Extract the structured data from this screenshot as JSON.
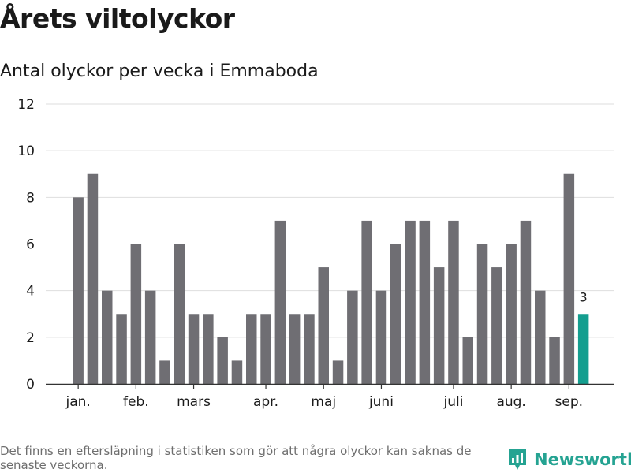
{
  "title": "Årets viltolyckor",
  "subtitle": "Antal olyckor per vecka i Emmaboda",
  "footnote": "Det finns en eftersläpning i statistiken som gör att några olyckor kan saknas de senaste veckorna.",
  "brand": {
    "name": "Newsworthy",
    "color": "#25a392",
    "icon": "newsworthy-logo-icon"
  },
  "chart_data": {
    "type": "bar",
    "y": [
      8,
      9,
      4,
      3,
      6,
      4,
      1,
      6,
      3,
      3,
      2,
      1,
      3,
      3,
      7,
      3,
      3,
      5,
      1,
      4,
      7,
      4,
      6,
      7,
      7,
      5,
      7,
      2,
      6,
      5,
      6,
      7,
      4,
      2,
      9,
      3
    ],
    "month_ticks": [
      {
        "label": "jan.",
        "at_bar": 0.5
      },
      {
        "label": "feb.",
        "at_bar": 4.5
      },
      {
        "label": "mars",
        "at_bar": 8.5
      },
      {
        "label": "apr.",
        "at_bar": 13.5
      },
      {
        "label": "maj",
        "at_bar": 17.5
      },
      {
        "label": "juni",
        "at_bar": 21.5
      },
      {
        "label": "juli",
        "at_bar": 26.5
      },
      {
        "label": "aug.",
        "at_bar": 30.5
      },
      {
        "label": "sep.",
        "at_bar": 34.5
      }
    ],
    "ylim": [
      0,
      12
    ],
    "yticks": [
      0,
      2,
      4,
      6,
      8,
      10,
      12
    ],
    "highlight": {
      "index": 35,
      "label": "3"
    },
    "colors": {
      "bar": "#6f6e73",
      "highlight": "#149e8f",
      "grid": "#dedede",
      "axis": "#333333"
    },
    "grid": true
  }
}
